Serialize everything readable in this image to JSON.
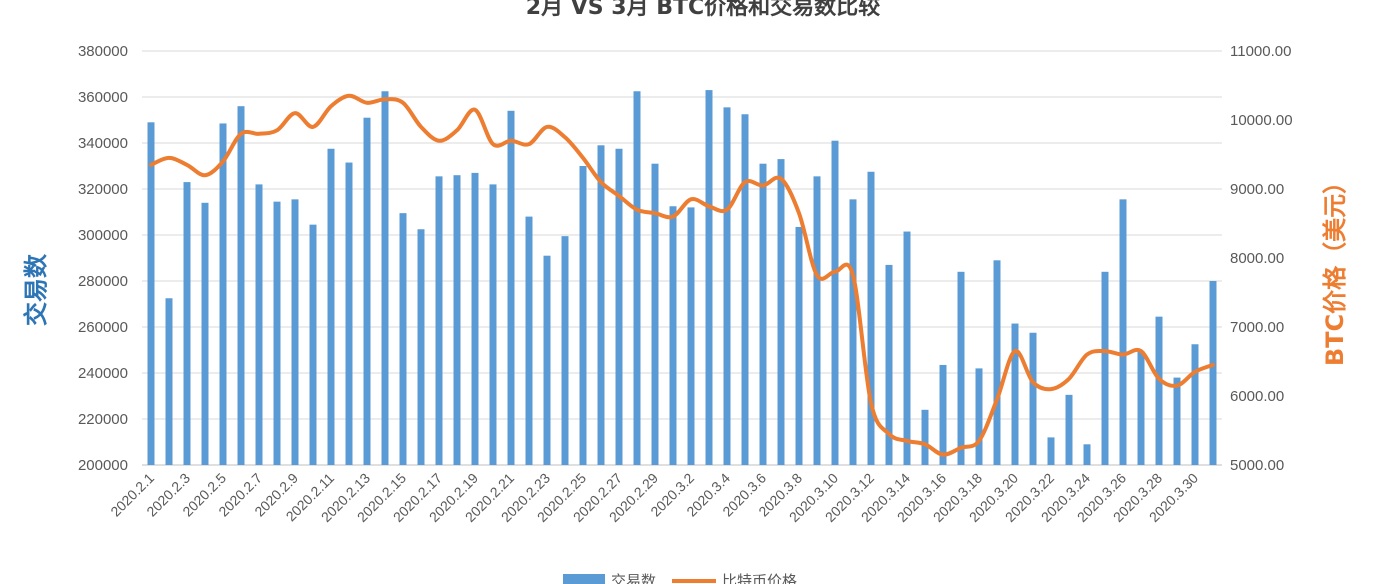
{
  "chart_data": {
    "type": "bar",
    "title": "2月 VS 3月 BTC价格和交易数比较",
    "ylabel": "交易数",
    "ylabel_right": "BTC价格（美元）",
    "ylim": [
      200000,
      380000
    ],
    "ylim_right": [
      5000,
      11000
    ],
    "yticks": [
      "200000",
      "220000",
      "240000",
      "260000",
      "280000",
      "300000",
      "320000",
      "340000",
      "360000",
      "380000"
    ],
    "yticks_right": [
      "5000.00",
      "6000.00",
      "7000.00",
      "8000.00",
      "9000.00",
      "10000.00",
      "11000.00"
    ],
    "grid": true,
    "legend_position": "bottom",
    "categories": [
      "2020.2.1",
      "2020.2.2",
      "2020.2.3",
      "2020.2.4",
      "2020.2.5",
      "2020.2.6",
      "2020.2.7",
      "2020.2.8",
      "2020.2.9",
      "2020.2.10",
      "2020.2.11",
      "2020.2.12",
      "2020.2.13",
      "2020.2.14",
      "2020.2.15",
      "2020.2.16",
      "2020.2.17",
      "2020.2.18",
      "2020.2.19",
      "2020.2.20",
      "2020.2.21",
      "2020.2.22",
      "2020.2.23",
      "2020.2.24",
      "2020.2.25",
      "2020.2.26",
      "2020.2.27",
      "2020.2.28",
      "2020.2.29",
      "2020.3.1",
      "2020.3.2",
      "2020.3.3",
      "2020.3.4",
      "2020.3.5",
      "2020.3.6",
      "2020.3.7",
      "2020.3.8",
      "2020.3.9",
      "2020.3.10",
      "2020.3.11",
      "2020.3.12",
      "2020.3.13",
      "2020.3.14",
      "2020.3.15",
      "2020.3.16",
      "2020.3.17",
      "2020.3.18",
      "2020.3.19",
      "2020.3.20",
      "2020.3.21",
      "2020.3.22",
      "2020.3.23",
      "2020.3.24",
      "2020.3.25",
      "2020.3.26",
      "2020.3.27",
      "2020.3.28",
      "2020.3.29",
      "2020.3.30",
      "2020.3.31"
    ],
    "xtick_labels": [
      "2020.2.1",
      "2020.2.3",
      "2020.2.5",
      "2020.2.7",
      "2020.2.9",
      "2020.2.11",
      "2020.2.13",
      "2020.2.15",
      "2020.2.17",
      "2020.2.19",
      "2020.2.21",
      "2020.2.23",
      "2020.2.25",
      "2020.2.27",
      "2020.2.29",
      "2020.3.2",
      "2020.3.4",
      "2020.3.6",
      "2020.3.8",
      "2020.3.10",
      "2020.3.12",
      "2020.3.14",
      "2020.3.16",
      "2020.3.18",
      "2020.3.20",
      "2020.3.22",
      "2020.3.24",
      "2020.3.26",
      "2020.3.28",
      "2020.3.30"
    ],
    "series": [
      {
        "name": "交易数",
        "type": "bar",
        "axis": "left",
        "color": "#5B9BD5",
        "values": [
          349000,
          272500,
          323000,
          314000,
          348500,
          356000,
          322000,
          314500,
          315500,
          304500,
          337500,
          331500,
          351000,
          362500,
          309500,
          302500,
          325500,
          326000,
          327000,
          322000,
          354000,
          308000,
          291000,
          299500,
          330000,
          339000,
          337500,
          362500,
          331000,
          312500,
          312000,
          363000,
          355500,
          352500,
          331000,
          333000,
          303500,
          325500,
          341000,
          315500,
          327500,
          287000,
          301500,
          224000,
          243500,
          284000,
          242000,
          289000,
          261500,
          257500,
          212000,
          230500,
          209000,
          284000,
          315500,
          249500,
          264500,
          238000,
          252500,
          280000
        ]
      },
      {
        "name": "比特币价格",
        "type": "line",
        "axis": "right",
        "color": "#ED7D31",
        "values": [
          9350,
          9450,
          9350,
          9200,
          9400,
          9800,
          9800,
          9850,
          10100,
          9900,
          10200,
          10350,
          10250,
          10300,
          10250,
          9900,
          9700,
          9850,
          10150,
          9650,
          9700,
          9650,
          9900,
          9750,
          9450,
          9100,
          8900,
          8700,
          8650,
          8600,
          8850,
          8750,
          8700,
          9100,
          9050,
          9150,
          8650,
          7750,
          7800,
          7750,
          5900,
          5450,
          5350,
          5300,
          5150,
          5250,
          5350,
          5950,
          6650,
          6200,
          6100,
          6250,
          6600,
          6650,
          6600,
          6650,
          6250,
          6150,
          6350,
          6450
        ]
      }
    ]
  }
}
